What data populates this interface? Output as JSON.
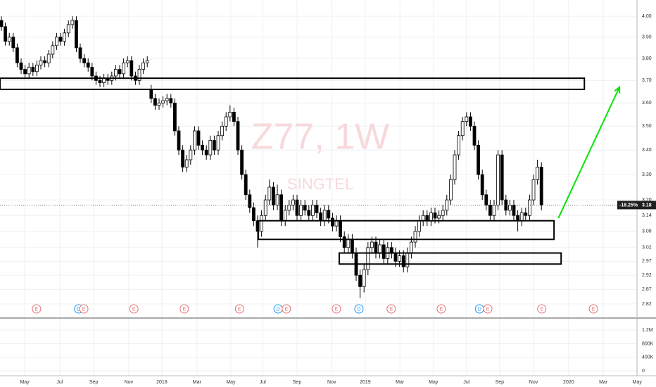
{
  "chart_data": {
    "type": "candlestick",
    "watermark": "Z77, 1W",
    "watermark_subtitle": "SINGTEL",
    "log_scale": true,
    "grid": true,
    "up_color": "#ffffff",
    "down_color": "#000000",
    "xlim": [
      -0.36,
      161.25
    ],
    "xticks": [
      {
        "value": 5.9,
        "label": "May"
      },
      {
        "value": 14.8,
        "label": "Jul"
      },
      {
        "value": 23.4,
        "label": "Sep"
      },
      {
        "value": 32.3,
        "label": "Nov"
      },
      {
        "value": 40.7,
        "label": "2018"
      },
      {
        "value": 49.6,
        "label": "Mar"
      },
      {
        "value": 58.2,
        "label": "May"
      },
      {
        "value": 66.3,
        "label": "Jul"
      },
      {
        "value": 75,
        "label": "Sep"
      },
      {
        "value": 83.8,
        "label": "Nov"
      },
      {
        "value": 92.3,
        "label": "2019"
      },
      {
        "value": 101.1,
        "label": "Mar"
      },
      {
        "value": 109.6,
        "label": "May"
      },
      {
        "value": 118,
        "label": "Jul"
      },
      {
        "value": 126.4,
        "label": "Sep"
      },
      {
        "value": 135,
        "label": "Nov"
      },
      {
        "value": 143.9,
        "label": "2020"
      },
      {
        "value": 152.7,
        "label": "Mar"
      },
      {
        "value": 161.3,
        "label": "May"
      }
    ],
    "ylim": [
      2.772,
      4.08
    ],
    "yticks": [
      {
        "value": 4,
        "label": "4.00"
      },
      {
        "value": 3.9,
        "label": "3.90"
      },
      {
        "value": 3.8,
        "label": "3.80"
      },
      {
        "value": 3.7,
        "label": "3.70"
      },
      {
        "value": 3.6,
        "label": "3.60"
      },
      {
        "value": 3.5,
        "label": "3.50"
      },
      {
        "value": 3.4,
        "label": "3.40"
      },
      {
        "value": 3.3,
        "label": "3.30"
      },
      {
        "value": 3.2,
        "label": "3.20"
      },
      {
        "value": 3.14,
        "label": "3.14"
      },
      {
        "value": 3.08,
        "label": "3.08"
      },
      {
        "value": 3.02,
        "label": "3.02"
      },
      {
        "value": 2.97,
        "label": "2.97"
      },
      {
        "value": 2.92,
        "label": "2.92"
      },
      {
        "value": 2.87,
        "label": "2.87"
      },
      {
        "value": 2.82,
        "label": "2.82"
      }
    ],
    "volume_lim": [
      -100000,
      1553000
    ],
    "volume_ticks": [
      {
        "value": 1200000,
        "label": "1.2M"
      },
      {
        "value": 800000,
        "label": "800K"
      },
      {
        "value": 400000,
        "label": "400K"
      },
      0
    ],
    "last_price": 3.18,
    "change_label": "-18.25%",
    "candles": [
      [
        3.98,
        4.0,
        3.93,
        3.95
      ],
      [
        3.95,
        3.97,
        3.86,
        3.88
      ],
      [
        3.88,
        3.92,
        3.86,
        3.9
      ],
      [
        3.9,
        3.92,
        3.83,
        3.85
      ],
      [
        3.85,
        3.87,
        3.76,
        3.78
      ],
      [
        3.78,
        3.8,
        3.73,
        3.75
      ],
      [
        3.75,
        3.77,
        3.71,
        3.73
      ],
      [
        3.73,
        3.78,
        3.71,
        3.76
      ],
      [
        3.76,
        3.78,
        3.72,
        3.74
      ],
      [
        3.74,
        3.79,
        3.72,
        3.77
      ],
      [
        3.77,
        3.81,
        3.75,
        3.79
      ],
      [
        3.79,
        3.81,
        3.76,
        3.78
      ],
      [
        3.78,
        3.84,
        3.76,
        3.82
      ],
      [
        3.82,
        3.88,
        3.8,
        3.86
      ],
      [
        3.86,
        3.92,
        3.84,
        3.9
      ],
      [
        3.9,
        3.92,
        3.86,
        3.88
      ],
      [
        3.88,
        3.94,
        3.86,
        3.92
      ],
      [
        3.92,
        3.98,
        3.9,
        3.96
      ],
      [
        3.96,
        4.0,
        3.94,
        3.98
      ],
      [
        3.98,
        4.0,
        3.83,
        3.85
      ],
      [
        3.85,
        3.87,
        3.78,
        3.8
      ],
      [
        3.8,
        3.82,
        3.76,
        3.78
      ],
      [
        3.78,
        3.8,
        3.74,
        3.76
      ],
      [
        3.76,
        3.78,
        3.7,
        3.72
      ],
      [
        3.72,
        3.74,
        3.68,
        3.7
      ],
      [
        3.7,
        3.72,
        3.67,
        3.69
      ],
      [
        3.69,
        3.73,
        3.67,
        3.71
      ],
      [
        3.71,
        3.73,
        3.68,
        3.7
      ],
      [
        3.7,
        3.74,
        3.68,
        3.72
      ],
      [
        3.72,
        3.77,
        3.7,
        3.75
      ],
      [
        3.75,
        3.77,
        3.71,
        3.73
      ],
      [
        3.73,
        3.8,
        3.71,
        3.78
      ],
      [
        3.78,
        3.81,
        3.76,
        3.79
      ],
      [
        3.79,
        3.81,
        3.7,
        3.72
      ],
      [
        3.72,
        3.74,
        3.68,
        3.7
      ],
      [
        3.7,
        3.77,
        3.68,
        3.75
      ],
      [
        3.75,
        3.8,
        3.73,
        3.78
      ],
      [
        3.78,
        3.81,
        3.76,
        3.79
      ],
      [
        3.66,
        3.68,
        3.6,
        3.62
      ],
      [
        3.62,
        3.64,
        3.57,
        3.59
      ],
      [
        3.59,
        3.62,
        3.57,
        3.6
      ],
      [
        3.6,
        3.63,
        3.58,
        3.61
      ],
      [
        3.61,
        3.64,
        3.59,
        3.62
      ],
      [
        3.62,
        3.64,
        3.58,
        3.6
      ],
      [
        3.6,
        3.62,
        3.46,
        3.48
      ],
      [
        3.48,
        3.5,
        3.38,
        3.4
      ],
      [
        3.4,
        3.42,
        3.31,
        3.33
      ],
      [
        3.33,
        3.38,
        3.31,
        3.36
      ],
      [
        3.36,
        3.42,
        3.34,
        3.4
      ],
      [
        3.4,
        3.5,
        3.38,
        3.48
      ],
      [
        3.48,
        3.5,
        3.4,
        3.42
      ],
      [
        3.42,
        3.44,
        3.38,
        3.4
      ],
      [
        3.4,
        3.42,
        3.36,
        3.38
      ],
      [
        3.38,
        3.46,
        3.36,
        3.44
      ],
      [
        3.44,
        3.46,
        3.38,
        3.4
      ],
      [
        3.4,
        3.48,
        3.38,
        3.46
      ],
      [
        3.46,
        3.52,
        3.44,
        3.5
      ],
      [
        3.5,
        3.56,
        3.48,
        3.54
      ],
      [
        3.54,
        3.59,
        3.52,
        3.56
      ],
      [
        3.56,
        3.58,
        3.5,
        3.52
      ],
      [
        3.52,
        3.54,
        3.38,
        3.4
      ],
      [
        3.4,
        3.42,
        3.28,
        3.3
      ],
      [
        3.3,
        3.32,
        3.2,
        3.22
      ],
      [
        3.22,
        3.24,
        3.15,
        3.17
      ],
      [
        3.17,
        3.19,
        3.1,
        3.12
      ],
      [
        3.12,
        3.14,
        3.02,
        3.08
      ],
      [
        3.08,
        3.16,
        3.06,
        3.14
      ],
      [
        3.14,
        3.22,
        3.12,
        3.2
      ],
      [
        3.2,
        3.28,
        3.18,
        3.25
      ],
      [
        3.25,
        3.27,
        3.16,
        3.18
      ],
      [
        3.18,
        3.26,
        3.16,
        3.22
      ],
      [
        3.22,
        3.24,
        3.1,
        3.12
      ],
      [
        3.12,
        3.18,
        3.1,
        3.16
      ],
      [
        3.16,
        3.2,
        3.14,
        3.18
      ],
      [
        3.18,
        3.22,
        3.16,
        3.2
      ],
      [
        3.2,
        3.22,
        3.12,
        3.14
      ],
      [
        3.14,
        3.2,
        3.12,
        3.18
      ],
      [
        3.18,
        3.2,
        3.14,
        3.16
      ],
      [
        3.16,
        3.18,
        3.12,
        3.14
      ],
      [
        3.14,
        3.2,
        3.12,
        3.18
      ],
      [
        3.18,
        3.2,
        3.13,
        3.15
      ],
      [
        3.15,
        3.17,
        3.1,
        3.12
      ],
      [
        3.12,
        3.18,
        3.1,
        3.16
      ],
      [
        3.16,
        3.18,
        3.11,
        3.13
      ],
      [
        3.13,
        3.15,
        3.08,
        3.1
      ],
      [
        3.1,
        3.14,
        3.08,
        3.12
      ],
      [
        3.12,
        3.14,
        3.04,
        3.06
      ],
      [
        3.06,
        3.08,
        3.0,
        3.02
      ],
      [
        3.02,
        3.07,
        3.0,
        3.05
      ],
      [
        3.05,
        3.07,
        2.98,
        3.0
      ],
      [
        3.0,
        3.02,
        2.9,
        2.92
      ],
      [
        2.92,
        2.94,
        2.84,
        2.88
      ],
      [
        2.88,
        2.96,
        2.86,
        2.94
      ],
      [
        2.94,
        3.04,
        2.92,
        3.02
      ],
      [
        3.02,
        3.06,
        3.0,
        3.04
      ],
      [
        3.04,
        3.06,
        2.98,
        3.0
      ],
      [
        3.0,
        3.05,
        2.98,
        3.03
      ],
      [
        3.03,
        3.05,
        2.96,
        2.98
      ],
      [
        2.98,
        3.04,
        2.96,
        3.02
      ],
      [
        3.02,
        3.04,
        2.98,
        3.0
      ],
      [
        3.0,
        3.02,
        2.95,
        2.97
      ],
      [
        2.97,
        3.01,
        2.95,
        2.99
      ],
      [
        2.99,
        3.01,
        2.93,
        2.95
      ],
      [
        2.95,
        3.02,
        2.93,
        3.0
      ],
      [
        3.0,
        3.06,
        2.98,
        3.04
      ],
      [
        3.04,
        3.1,
        3.02,
        3.08
      ],
      [
        3.08,
        3.14,
        3.06,
        3.12
      ],
      [
        3.12,
        3.16,
        3.1,
        3.14
      ],
      [
        3.14,
        3.16,
        3.1,
        3.12
      ],
      [
        3.12,
        3.17,
        3.1,
        3.15
      ],
      [
        3.15,
        3.17,
        3.11,
        3.13
      ],
      [
        3.13,
        3.16,
        3.11,
        3.14
      ],
      [
        3.14,
        3.18,
        3.12,
        3.16
      ],
      [
        3.16,
        3.22,
        3.14,
        3.2
      ],
      [
        3.2,
        3.3,
        3.18,
        3.28
      ],
      [
        3.28,
        3.4,
        3.26,
        3.38
      ],
      [
        3.38,
        3.48,
        3.36,
        3.46
      ],
      [
        3.46,
        3.54,
        3.44,
        3.52
      ],
      [
        3.52,
        3.56,
        3.5,
        3.54
      ],
      [
        3.54,
        3.56,
        3.48,
        3.5
      ],
      [
        3.5,
        3.52,
        3.4,
        3.42
      ],
      [
        3.42,
        3.44,
        3.28,
        3.3
      ],
      [
        3.3,
        3.32,
        3.2,
        3.22
      ],
      [
        3.22,
        3.24,
        3.16,
        3.18
      ],
      [
        3.18,
        3.2,
        3.12,
        3.14
      ],
      [
        3.14,
        3.2,
        3.12,
        3.18
      ],
      [
        3.18,
        3.4,
        3.16,
        3.38
      ],
      [
        3.38,
        3.4,
        3.18,
        3.2
      ],
      [
        3.2,
        3.22,
        3.14,
        3.16
      ],
      [
        3.16,
        3.2,
        3.14,
        3.18
      ],
      [
        3.18,
        3.2,
        3.12,
        3.14
      ],
      [
        3.14,
        3.16,
        3.08,
        3.12
      ],
      [
        3.12,
        3.17,
        3.1,
        3.15
      ],
      [
        3.15,
        3.17,
        3.12,
        3.14
      ],
      [
        3.14,
        3.22,
        3.12,
        3.2
      ],
      [
        3.2,
        3.3,
        3.18,
        3.28
      ],
      [
        3.28,
        3.36,
        3.26,
        3.33
      ],
      [
        3.33,
        3.35,
        3.16,
        3.18
      ]
    ],
    "zones": [
      {
        "x": [
          -0.36,
          147.9
        ],
        "y": [
          3.71,
          3.66
        ]
      },
      {
        "x": [
          65.2,
          140.2
        ],
        "y": [
          3.12,
          3.05
        ]
      },
      {
        "x": [
          85.7,
          142
        ],
        "y": [
          3.0,
          2.96
        ]
      }
    ],
    "arrow": {
      "x": [
        141.3,
        156.8
      ],
      "y": [
        3.13,
        3.67
      ],
      "color": "#00e600"
    },
    "events": [
      {
        "x": 8.9,
        "label": "E"
      },
      {
        "x": 19.6,
        "label": "D"
      },
      {
        "x": 20.9,
        "label": "E"
      },
      {
        "x": 33.6,
        "label": "E"
      },
      {
        "x": 46.4,
        "label": "E"
      },
      {
        "x": 60.4,
        "label": "E"
      },
      {
        "x": 70.2,
        "label": "D"
      },
      {
        "x": 72.3,
        "label": "E"
      },
      {
        "x": 85,
        "label": "E"
      },
      {
        "x": 90.7,
        "label": "D"
      },
      {
        "x": 98.9,
        "label": "E"
      },
      {
        "x": 111.6,
        "label": "E"
      },
      {
        "x": 121.3,
        "label": "D"
      },
      {
        "x": 123.4,
        "label": "E"
      },
      {
        "x": 137.1,
        "label": "E"
      },
      {
        "x": 150.2,
        "label": "E"
      }
    ]
  }
}
